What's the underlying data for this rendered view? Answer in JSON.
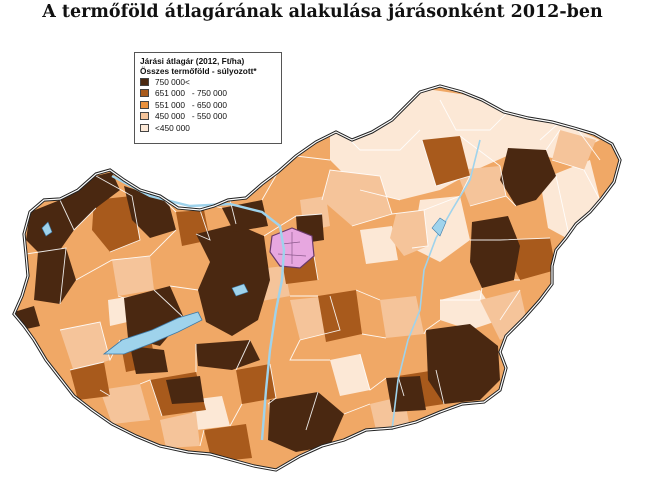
{
  "title": "A termőföld átlagárának alakulása járásonként 2012-ben",
  "legend": {
    "title_line1": "Járási átlagár (2012, Ft/ha)",
    "title_line2": "Összes termőföld - súlyozott*",
    "classes": [
      {
        "label": "750 000<",
        "color": "#4a2811"
      },
      {
        "label": "651 000   - 750 000",
        "color": "#a85a1c"
      },
      {
        "label": "551 000   - 650 000",
        "color": "#e9913d"
      },
      {
        "label": "450 000   - 550 000",
        "color": "#f5c49a"
      },
      {
        "label": "<450 000",
        "color": "#fce8d6"
      }
    ]
  },
  "capital_color": "#e7a7e0",
  "water_color": "#9fd3ec"
}
